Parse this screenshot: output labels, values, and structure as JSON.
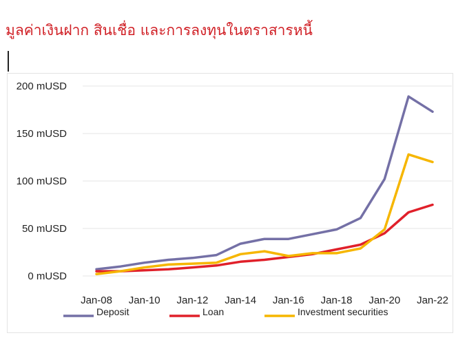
{
  "title": "มูลค่าเงินฝาก สินเชื่อ และการลงทุนในตราสารหนี้",
  "chart_data": {
    "type": "line",
    "x": [
      "Jan-08",
      "Jan-09",
      "Jan-10",
      "Jan-11",
      "Jan-12",
      "Jan-13",
      "Jan-14",
      "Jan-15",
      "Jan-16",
      "Jan-17",
      "Jan-18",
      "Jan-19",
      "Jan-20",
      "Jan-21",
      "Jan-22"
    ],
    "x_tick_labels": [
      "Jan-08",
      "Jan-10",
      "Jan-12",
      "Jan-14",
      "Jan-16",
      "Jan-18",
      "Jan-20",
      "Jan-22"
    ],
    "y_tick_labels": [
      "0 mUSD",
      "50 mUSD",
      "100 mUSD",
      "150 mUSD",
      "200 mUSD"
    ],
    "y_ticks": [
      0,
      50,
      100,
      150,
      200
    ],
    "ylim": [
      0,
      200
    ],
    "grid": true,
    "legend_position": "bottom",
    "series": [
      {
        "name": "Deposit",
        "color": "#7470a6",
        "values": [
          7,
          10,
          14,
          17,
          19,
          22,
          34,
          39,
          39,
          44,
          49,
          61,
          102,
          189,
          173
        ]
      },
      {
        "name": "Loan",
        "color": "#e0202a",
        "values": [
          5,
          5,
          6,
          7,
          9,
          11,
          15,
          17,
          20,
          23,
          28,
          33,
          45,
          67,
          75
        ]
      },
      {
        "name": "Investment securities",
        "color": "#f6b600",
        "values": [
          2,
          5,
          9,
          12,
          13,
          14,
          23,
          26,
          21,
          24,
          24,
          29,
          49,
          128,
          120
        ]
      }
    ]
  }
}
